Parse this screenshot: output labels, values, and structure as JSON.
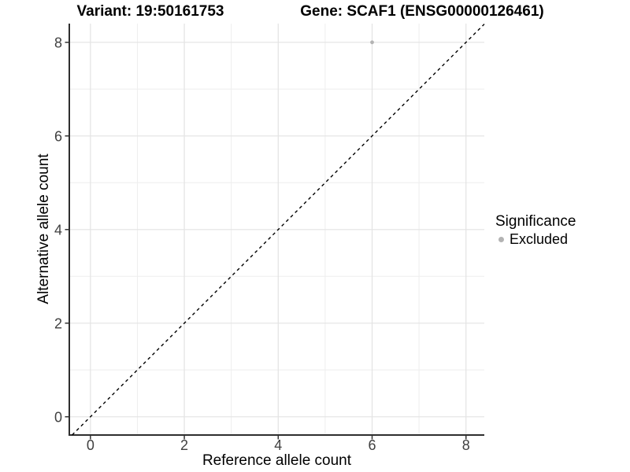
{
  "chart_data": {
    "type": "scatter",
    "title_left": "Variant: 19:50161753",
    "title_right": "Gene: SCAF1 (ENSG00000126461)",
    "xlabel": "Reference allele count",
    "ylabel": "Alternative allele count",
    "xlim": [
      -0.45,
      8.39
    ],
    "ylim": [
      -0.39,
      8.4
    ],
    "xticks": [
      0,
      2,
      4,
      6,
      8
    ],
    "yticks": [
      0,
      2,
      4,
      6,
      8
    ],
    "xminor": [
      1,
      3,
      5,
      7
    ],
    "yminor": [
      1,
      3,
      5,
      7
    ],
    "grid": "major+minor",
    "identity_line": {
      "slope": 1,
      "intercept": 0,
      "style": "dashed",
      "color": "#000000"
    },
    "series": [
      {
        "name": "Excluded",
        "color": "#b3b3b3",
        "points": [
          {
            "x": 6,
            "y": 8
          }
        ]
      }
    ],
    "legend": {
      "title": "Significance",
      "position": "right",
      "items": [
        {
          "label": "Excluded",
          "color": "#b3b3b3"
        }
      ]
    }
  },
  "style_colors": {
    "grid_major": "#e3e3e3",
    "grid_minor": "#eeeeee",
    "axis_line": "#2f2f2f",
    "tick_mark": "#333333",
    "tick_label": "#404040"
  }
}
